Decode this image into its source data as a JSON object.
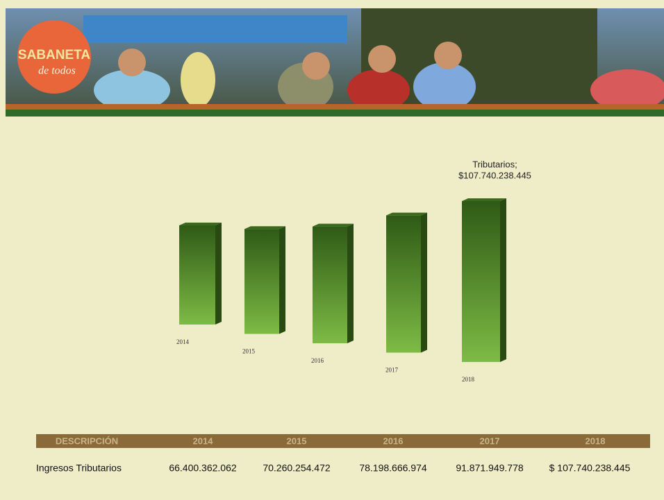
{
  "logo": {
    "title": "SABANETA",
    "subtitle": "de todos"
  },
  "chart_data": {
    "type": "bar3d",
    "categories": [
      "2014",
      "2015",
      "2016",
      "2017",
      "2018"
    ],
    "series": [
      {
        "name": "Tributarios",
        "color": "#5e9a2c",
        "values": [
          66400362062,
          70260254472,
          78198666974,
          91871949778,
          107740238445
        ],
        "value_labels": [
          null,
          null,
          null,
          null,
          "$107.740.238.445"
        ]
      }
    ],
    "annotation": "Tributarios;"
  },
  "table": {
    "header": [
      "DESCRIPCIÓN",
      "2014",
      "2015",
      "2016",
      "2017",
      "2018"
    ],
    "rows": [
      [
        "Ingresos Tributarios",
        "66.400.362.062",
        "70.260.254.472",
        "78.198.666.974",
        "91.871.949.778",
        "$ 107.740.238.445"
      ]
    ]
  }
}
